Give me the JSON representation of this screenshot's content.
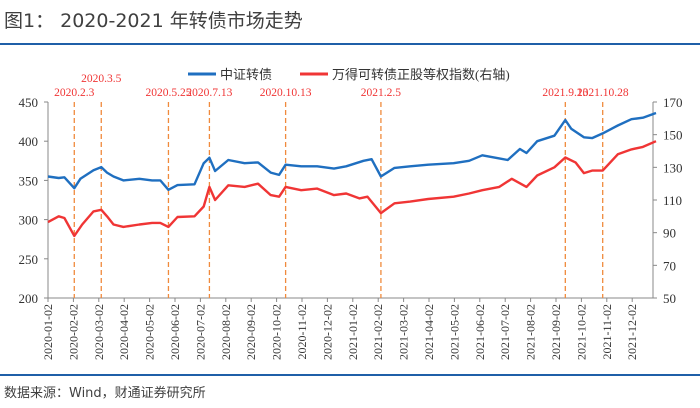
{
  "title": "图1： 2020-2021 年转债市场走势",
  "source": "数据来源：Wind，财通证券研究所",
  "colors": {
    "series1": "#1f6fc0",
    "series2": "#f03535",
    "marker_line": "#f08a3c",
    "marker_label": "#f03535"
  },
  "chart_data": {
    "type": "line",
    "xlabel": "",
    "ylabel": "",
    "grid": false,
    "legend_position": "top",
    "x_ticks": [
      "2020-01-02",
      "2020-02-02",
      "2020-03-02",
      "2020-04-02",
      "2020-05-02",
      "2020-06-02",
      "2020-07-02",
      "2020-08-02",
      "2020-09-02",
      "2020-10-02",
      "2020-11-02",
      "2020-12-02",
      "2021-01-02",
      "2021-02-02",
      "2021-03-02",
      "2021-04-02",
      "2021-05-02",
      "2021-06-02",
      "2021-07-02",
      "2021-08-02",
      "2021-09-02",
      "2021-10-02",
      "2021-11-02",
      "2021-12-02"
    ],
    "y_left": {
      "range": [
        200,
        450
      ],
      "ticks": [
        "200",
        "250",
        "300",
        "350",
        "400",
        "450"
      ]
    },
    "y_right": {
      "range": [
        50,
        170
      ],
      "ticks": [
        "50",
        "70",
        "90",
        "110",
        "130",
        "150",
        "170"
      ]
    },
    "markers": [
      {
        "date": "2020-02-03",
        "label": "2020.2.3"
      },
      {
        "date": "2020-03-05",
        "label": "2020.3.5"
      },
      {
        "date": "2020-05-25",
        "label": "2020.5.25"
      },
      {
        "date": "2020-07-13",
        "label": "2020.7.13"
      },
      {
        "date": "2020-10-13",
        "label": "2020.10.13"
      },
      {
        "date": "2021-02-05",
        "label": "2021.2.5"
      },
      {
        "date": "2021-09-13",
        "label": "2021.9.13"
      },
      {
        "date": "2021-10-28",
        "label": "2021.10.28"
      }
    ],
    "series": [
      {
        "name": "中证转债",
        "axis": "left",
        "points": [
          [
            "2020-01-02",
            355
          ],
          [
            "2020-01-15",
            353
          ],
          [
            "2020-01-22",
            354
          ],
          [
            "2020-02-03",
            340
          ],
          [
            "2020-02-10",
            352
          ],
          [
            "2020-02-25",
            363
          ],
          [
            "2020-03-05",
            367
          ],
          [
            "2020-03-12",
            360
          ],
          [
            "2020-03-20",
            355
          ],
          [
            "2020-04-01",
            350
          ],
          [
            "2020-04-20",
            352
          ],
          [
            "2020-05-05",
            350
          ],
          [
            "2020-05-15",
            350
          ],
          [
            "2020-05-25",
            338
          ],
          [
            "2020-06-05",
            344
          ],
          [
            "2020-06-25",
            345
          ],
          [
            "2020-07-06",
            372
          ],
          [
            "2020-07-13",
            379
          ],
          [
            "2020-07-20",
            362
          ],
          [
            "2020-08-05",
            376
          ],
          [
            "2020-08-25",
            372
          ],
          [
            "2020-09-10",
            373
          ],
          [
            "2020-09-25",
            360
          ],
          [
            "2020-10-05",
            357
          ],
          [
            "2020-10-13",
            370
          ],
          [
            "2020-11-01",
            368
          ],
          [
            "2020-11-20",
            368
          ],
          [
            "2020-12-10",
            365
          ],
          [
            "2020-12-25",
            368
          ],
          [
            "2021-01-15",
            375
          ],
          [
            "2021-01-25",
            377
          ],
          [
            "2021-02-05",
            355
          ],
          [
            "2021-02-20",
            366
          ],
          [
            "2021-03-10",
            368
          ],
          [
            "2021-04-01",
            370
          ],
          [
            "2021-05-01",
            372
          ],
          [
            "2021-05-20",
            375
          ],
          [
            "2021-06-05",
            382
          ],
          [
            "2021-06-25",
            378
          ],
          [
            "2021-07-05",
            376
          ],
          [
            "2021-07-20",
            390
          ],
          [
            "2021-07-28",
            385
          ],
          [
            "2021-08-10",
            400
          ],
          [
            "2021-08-31",
            407
          ],
          [
            "2021-09-13",
            427
          ],
          [
            "2021-09-20",
            416
          ],
          [
            "2021-10-05",
            405
          ],
          [
            "2021-10-15",
            404
          ],
          [
            "2021-10-28",
            410
          ],
          [
            "2021-11-15",
            420
          ],
          [
            "2021-12-01",
            428
          ],
          [
            "2021-12-15",
            430
          ],
          [
            "2021-12-31",
            436
          ]
        ]
      },
      {
        "name": "万得可转债正股等权指数(右轴)",
        "axis": "right",
        "points": [
          [
            "2020-01-02",
            96.5
          ],
          [
            "2020-01-15",
            100
          ],
          [
            "2020-01-22",
            99
          ],
          [
            "2020-02-03",
            88
          ],
          [
            "2020-02-12",
            95
          ],
          [
            "2020-02-25",
            103
          ],
          [
            "2020-03-05",
            104
          ],
          [
            "2020-03-12",
            100
          ],
          [
            "2020-03-20",
            95
          ],
          [
            "2020-04-01",
            93.5
          ],
          [
            "2020-04-20",
            95
          ],
          [
            "2020-05-05",
            96
          ],
          [
            "2020-05-15",
            96
          ],
          [
            "2020-05-25",
            93.5
          ],
          [
            "2020-06-05",
            99.6
          ],
          [
            "2020-06-25",
            100
          ],
          [
            "2020-07-06",
            106
          ],
          [
            "2020-07-13",
            118
          ],
          [
            "2020-07-20",
            110
          ],
          [
            "2020-08-05",
            119
          ],
          [
            "2020-08-25",
            118
          ],
          [
            "2020-09-10",
            120
          ],
          [
            "2020-09-25",
            113
          ],
          [
            "2020-10-05",
            112
          ],
          [
            "2020-10-13",
            118
          ],
          [
            "2020-11-01",
            116
          ],
          [
            "2020-11-20",
            117
          ],
          [
            "2020-12-10",
            113
          ],
          [
            "2020-12-25",
            114
          ],
          [
            "2021-01-10",
            111
          ],
          [
            "2021-01-20",
            112
          ],
          [
            "2021-02-05",
            102
          ],
          [
            "2021-02-20",
            108
          ],
          [
            "2021-03-10",
            109
          ],
          [
            "2021-04-01",
            110.6
          ],
          [
            "2021-05-01",
            112
          ],
          [
            "2021-05-20",
            114
          ],
          [
            "2021-06-05",
            116
          ],
          [
            "2021-06-25",
            118
          ],
          [
            "2021-07-10",
            123
          ],
          [
            "2021-07-28",
            118
          ],
          [
            "2021-08-10",
            125
          ],
          [
            "2021-08-31",
            130
          ],
          [
            "2021-09-13",
            136
          ],
          [
            "2021-09-25",
            133
          ],
          [
            "2021-10-05",
            126.5
          ],
          [
            "2021-10-15",
            128
          ],
          [
            "2021-10-28",
            128
          ],
          [
            "2021-11-15",
            138
          ],
          [
            "2021-12-01",
            141
          ],
          [
            "2021-12-15",
            142.5
          ],
          [
            "2021-12-31",
            146
          ]
        ]
      }
    ]
  }
}
